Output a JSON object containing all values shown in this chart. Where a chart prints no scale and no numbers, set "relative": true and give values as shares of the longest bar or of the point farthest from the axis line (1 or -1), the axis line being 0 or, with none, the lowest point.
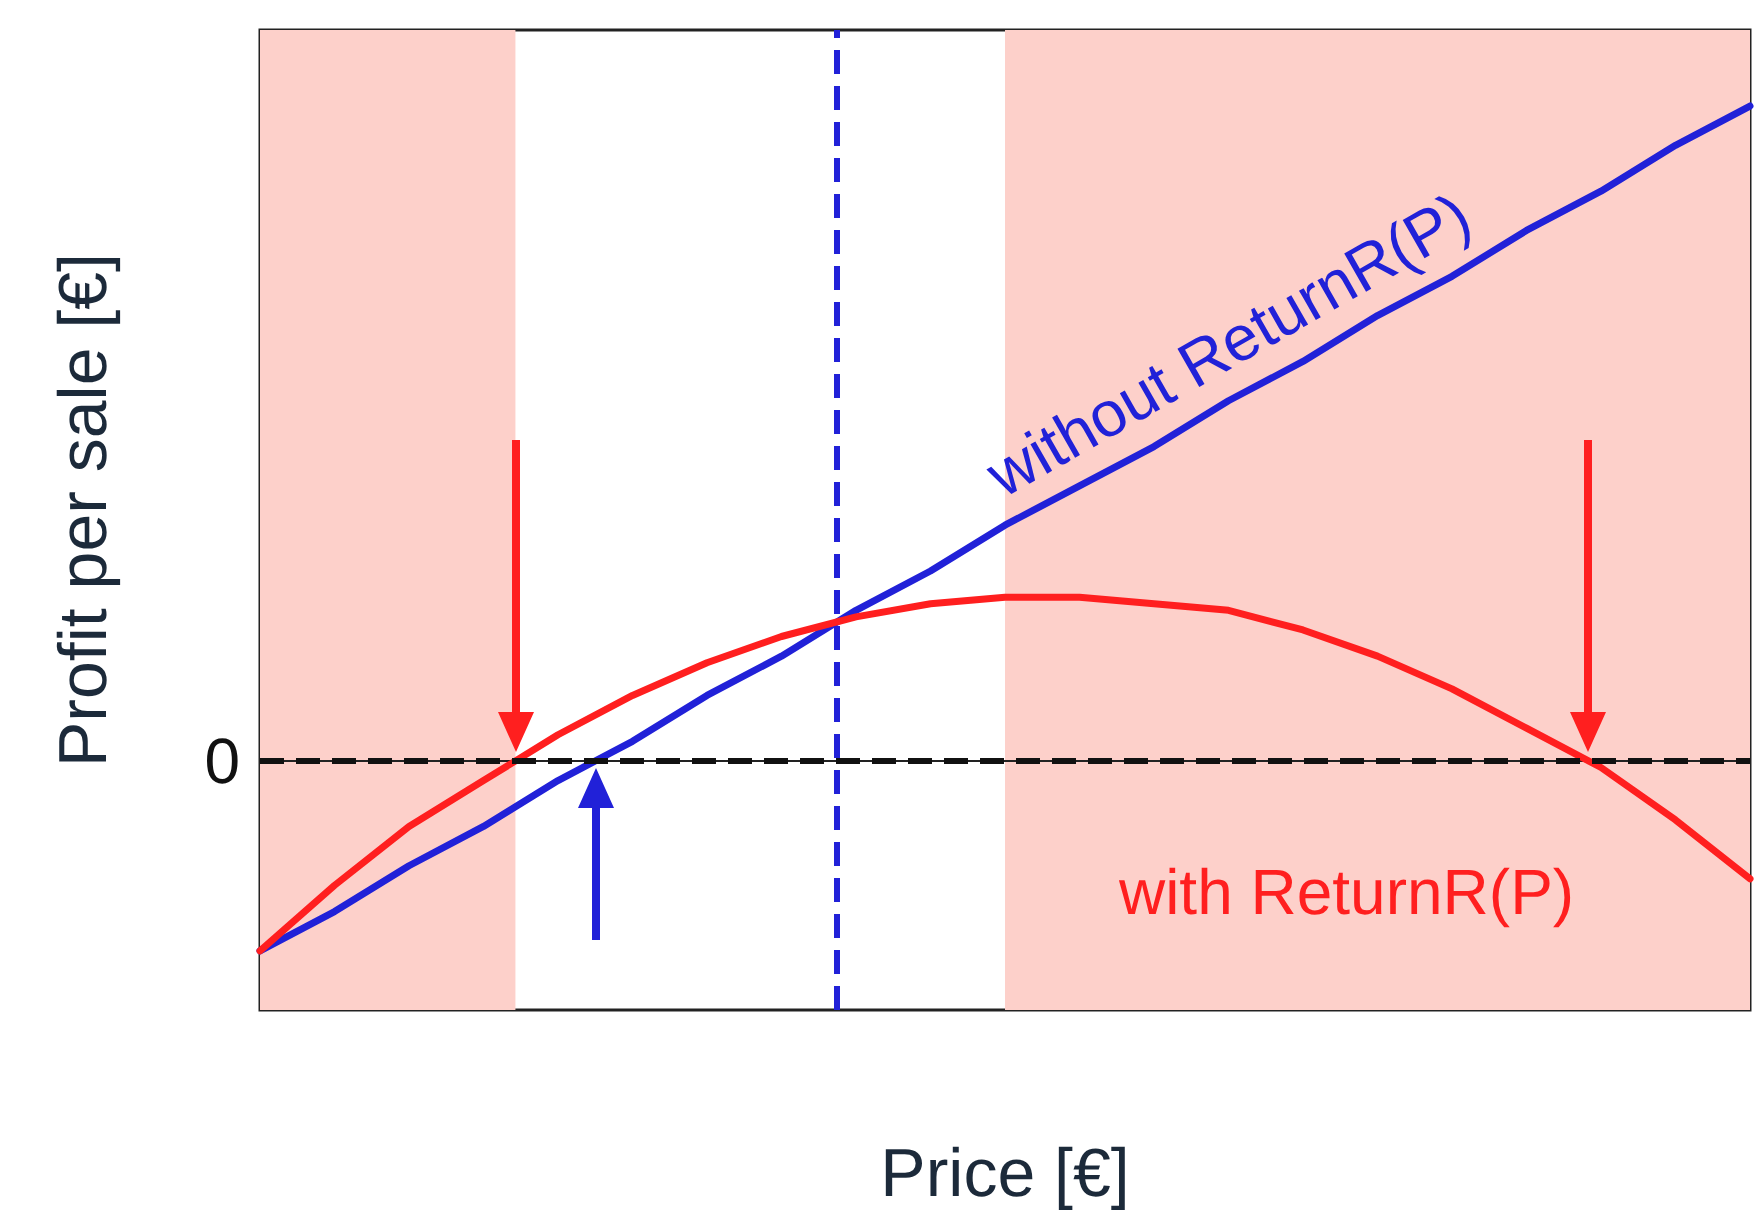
{
  "chart_data": {
    "type": "line",
    "relative": true,
    "xlabel": "Price [€]",
    "ylabel": "Profit per sale [€]",
    "categories": [
      null,
      null,
      null,
      null,
      null,
      null,
      null,
      null,
      null,
      null,
      null,
      null,
      null,
      null,
      null,
      null,
      null,
      null,
      null,
      null,
      null
    ],
    "series": [
      {
        "name": "without ReturnR(P)",
        "color": "#2121d8",
        "values": [
          -0.29,
          -0.23,
          -0.16,
          -0.1,
          -0.03,
          0.03,
          0.1,
          0.16,
          0.23,
          0.29,
          0.36,
          0.42,
          0.48,
          0.55,
          0.61,
          0.68,
          0.74,
          0.81,
          0.87,
          0.94,
          1
        ]
      },
      {
        "name": "with ReturnR(P)",
        "color": "#ff1f1f",
        "values": [
          -0.29,
          -0.19,
          -0.1,
          -0.03,
          0.04,
          0.1,
          0.15,
          0.19,
          0.22,
          0.24,
          0.25,
          0.25,
          0.24,
          0.23,
          0.2,
          0.16,
          0.11,
          0.05,
          -0.01,
          -0.09,
          -0.18
        ]
      }
    ],
    "ref_lines": [
      {
        "axis": "y",
        "value": 0,
        "label": "0",
        "color": "#111111",
        "line_style": "dashed"
      }
    ],
    "grid": false,
    "legend": false,
    "marker": "none",
    "line_style": "solid"
  }
}
